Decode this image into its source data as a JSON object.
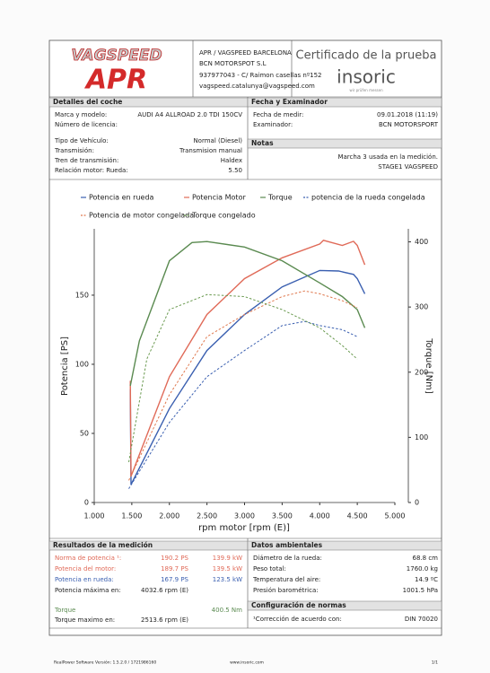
{
  "header": {
    "logo_top": "VAGSPEED",
    "logo_bottom": "APR",
    "agency_lines": [
      "APR / VAGSPEED BARCELONA",
      "BCN MOTORSPOT S.L",
      "937977043 - C/ Raimon casellas nº152",
      "vagspeed.catalunya@vagspeed.com"
    ],
    "cert_title": "Certificado de la prueba",
    "brand": "insoric",
    "brand_tagline": "wir prüfen messen"
  },
  "car": {
    "title": "Detalles del coche",
    "rows": [
      {
        "label": "Marca y modelo:",
        "value": "AUDI A4 ALLROAD 2.0 TDI 150CV"
      },
      {
        "label": "Número de licencia:"
      },
      {
        "label": "Tipo de Vehículo:",
        "value": "Normal (Diesel)"
      },
      {
        "label": "Transmisión:",
        "value": "Transmision manual"
      },
      {
        "label": "Tren de transmisión:",
        "value": "Haldex"
      },
      {
        "label": "Relación motor: Rueda:",
        "value": "5.50"
      }
    ]
  },
  "test": {
    "title": "Fecha y Examinador",
    "rows": [
      {
        "label": "Fecha de medir:",
        "value": "09.01.2018 (11:19)"
      },
      {
        "label": "Examinador:",
        "value": "BCN MOTORSPORT"
      }
    ]
  },
  "notes": {
    "title": "Notas",
    "lines": [
      "Marcha 3 usada en la medición.",
      "STAGE1 VAGSPEED"
    ]
  },
  "chart_data": {
    "type": "line",
    "x_label": "rpm motor [rpm (E)]",
    "y_label": "Potencia [PS]",
    "y2_label": "Torque [Nm]",
    "xlim": [
      1000,
      5000
    ],
    "xticks": [
      {
        "value": 1000,
        "label": "1.000"
      },
      {
        "value": 1500,
        "label": "1.500"
      },
      {
        "value": 2000,
        "label": "2.000"
      },
      {
        "value": 2500,
        "label": "2.500"
      },
      {
        "value": 3000,
        "label": "3.000"
      },
      {
        "value": 3500,
        "label": "3.500"
      },
      {
        "value": 4000,
        "label": "4.000"
      },
      {
        "value": 4500,
        "label": "4.500"
      },
      {
        "value": 5000,
        "label": "5.000"
      }
    ],
    "ylim": [
      0,
      198
    ],
    "yticks": [
      0,
      50,
      100,
      150
    ],
    "y2lim": [
      0,
      420
    ],
    "y2ticks": [
      0,
      100,
      200,
      300,
      400
    ],
    "series": [
      {
        "name": "Potencia en rueda",
        "color": "#3a5fb0",
        "dashed": false,
        "x": [
          1480,
          1490,
          2000,
          2500,
          3000,
          3500,
          4000,
          4250,
          4450,
          4500,
          4600
        ],
        "values": [
          82,
          13,
          68,
          110,
          136,
          156,
          167.9,
          167.5,
          165,
          162,
          151
        ]
      },
      {
        "name": "Potencia Motor",
        "color": "#e06a58",
        "dashed": false,
        "x": [
          1480,
          1490,
          2000,
          2500,
          3000,
          3500,
          4000,
          4050,
          4300,
          4450,
          4500,
          4600
        ],
        "values": [
          88,
          19,
          91,
          136,
          162,
          177,
          187,
          189.7,
          186,
          189,
          186,
          172
        ]
      },
      {
        "name": "Torque",
        "color": "#5a8a50",
        "dashed": false,
        "axis": "y2",
        "x": [
          1480,
          1600,
          2000,
          2300,
          2500,
          3000,
          3500,
          4000,
          4300,
          4500,
          4600
        ],
        "values": [
          179,
          248,
          371,
          399,
          400.5,
          392,
          371,
          337,
          316,
          296,
          268
        ]
      },
      {
        "name": "potencia de la rueda congelada",
        "color": "#3a5fb0",
        "dashed": true,
        "x": [
          1460,
          2000,
          2500,
          3000,
          3500,
          3800,
          4000,
          4300,
          4500
        ],
        "values": [
          10,
          58,
          91,
          110,
          128,
          131,
          128,
          125,
          120
        ]
      },
      {
        "name": "Potencia de motor congelada",
        "color": "#e07a50",
        "dashed": true,
        "x": [
          1460,
          2000,
          2500,
          3000,
          3500,
          3800,
          4000,
          4300,
          4500
        ],
        "values": [
          16,
          78,
          120,
          136,
          149,
          153,
          151,
          146,
          141
        ]
      },
      {
        "name": "Torque congelado",
        "color": "#6a9a50",
        "dashed": true,
        "axis": "y2",
        "x": [
          1460,
          1700,
          2000,
          2500,
          3000,
          3500,
          4000,
          4300,
          4500
        ],
        "values": [
          62,
          220,
          296,
          319,
          316,
          296,
          268,
          241,
          220
        ]
      }
    ]
  },
  "results": {
    "title": "Resultados de la medición",
    "rows": [
      {
        "label": "Norma de potencia ¹:",
        "ps": "190.2 PS",
        "kw": "139.9 kW",
        "color": "#e06a58"
      },
      {
        "label": "Potencia del motor:",
        "ps": "189.7 PS",
        "kw": "139.5 kW",
        "color": "#e06a58"
      },
      {
        "label": "Potencia en rueda:",
        "ps": "167.9 PS",
        "kw": "123.5 kW",
        "color": "#3a5fb0"
      },
      {
        "label": "Potencia máxima en:",
        "ps": "4032.6 rpm (E)",
        "color": "#222222"
      },
      {
        "label": "Torque",
        "kw": "400.5 Nm",
        "color": "#5a8a50"
      },
      {
        "label": "Torque maximo en:",
        "ps": "2513.6 rpm (E)",
        "color": "#222222"
      }
    ]
  },
  "ambient": {
    "title": "Datos ambientales",
    "rows": [
      {
        "label": "Diámetro de la rueda:",
        "value": "68.8 cm"
      },
      {
        "label": "Peso total:",
        "value": "1760.0 kg"
      },
      {
        "label": "Temperatura del aire:",
        "value": "14.9 ºC"
      },
      {
        "label": "Presión barométrica:",
        "value": "1001.5 hPa"
      }
    ]
  },
  "norms": {
    "title": "Configuración de normas",
    "rows": [
      {
        "label": "¹Corrección de acuerdo con:",
        "value": "DIN 70020"
      }
    ]
  },
  "footer": {
    "software": "RealPower Software Versión: 1.5.2.0 / 1721986160",
    "website": "www.insoric.com",
    "page": "1/1"
  }
}
